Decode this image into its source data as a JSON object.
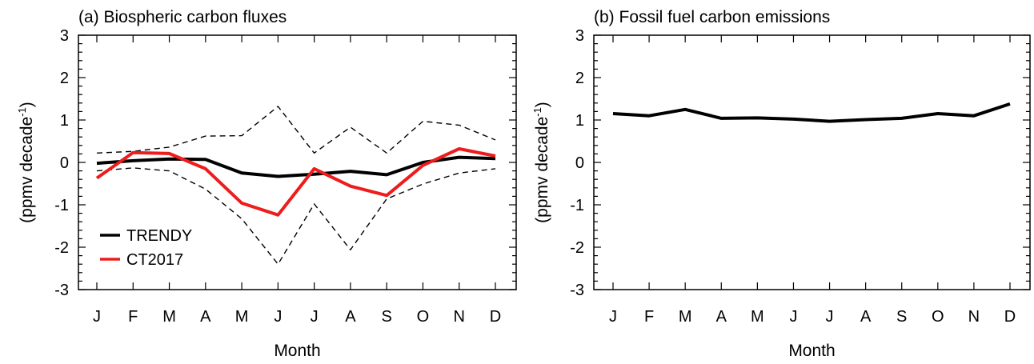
{
  "chart_data": [
    {
      "type": "line",
      "title": "(a) Biospheric carbon fluxes",
      "xlabel": "Month",
      "ylabel": "(ppmv decade",
      "ylabel_sup": "-1",
      "ylabel_close": ")",
      "categories": [
        "J",
        "F",
        "M",
        "A",
        "M",
        "J",
        "J",
        "A",
        "S",
        "O",
        "N",
        "D"
      ],
      "ylim": [
        -3,
        3
      ],
      "yticks": [
        "3",
        "2",
        "1",
        "0",
        "-1",
        "-2",
        "-3"
      ],
      "legend_position": "bottom-left",
      "series": [
        {
          "name": "TRENDY",
          "color": "#000000",
          "style": "solid",
          "width": "thick",
          "values": [
            -0.02,
            0.04,
            0.08,
            0.07,
            -0.25,
            -0.33,
            -0.28,
            -0.21,
            -0.29,
            0.0,
            0.12,
            0.09
          ]
        },
        {
          "name": "CT2017",
          "color": "#ee1c1c",
          "style": "solid",
          "width": "thick",
          "values": [
            -0.37,
            0.23,
            0.21,
            -0.15,
            -0.96,
            -1.24,
            -0.15,
            -0.56,
            -0.78,
            -0.07,
            0.32,
            0.15
          ]
        },
        {
          "color": "#000000",
          "style": "dashed",
          "width": "thin",
          "values": [
            0.22,
            0.26,
            0.36,
            0.62,
            0.63,
            1.32,
            0.22,
            0.83,
            0.22,
            0.97,
            0.88,
            0.53
          ]
        },
        {
          "color": "#000000",
          "style": "dashed",
          "width": "thin",
          "values": [
            -0.2,
            -0.13,
            -0.2,
            -0.63,
            -1.33,
            -2.4,
            -0.98,
            -2.06,
            -0.86,
            -0.51,
            -0.25,
            -0.15
          ]
        }
      ]
    },
    {
      "type": "line",
      "title": "(b) Fossil fuel carbon emissions",
      "xlabel": "Month",
      "ylabel": "(ppmv decade",
      "ylabel_sup": "-1",
      "ylabel_close": ")",
      "categories": [
        "J",
        "F",
        "M",
        "A",
        "M",
        "J",
        "J",
        "A",
        "S",
        "O",
        "N",
        "D"
      ],
      "ylim": [
        -3,
        3
      ],
      "yticks": [
        "3",
        "2",
        "1",
        "0",
        "-1",
        "-2",
        "-3"
      ],
      "series": [
        {
          "color": "#000000",
          "style": "solid",
          "width": "thick",
          "values": [
            1.15,
            1.1,
            1.25,
            1.04,
            1.05,
            1.02,
            0.97,
            1.01,
            1.04,
            1.15,
            1.1,
            1.38
          ]
        }
      ]
    }
  ]
}
